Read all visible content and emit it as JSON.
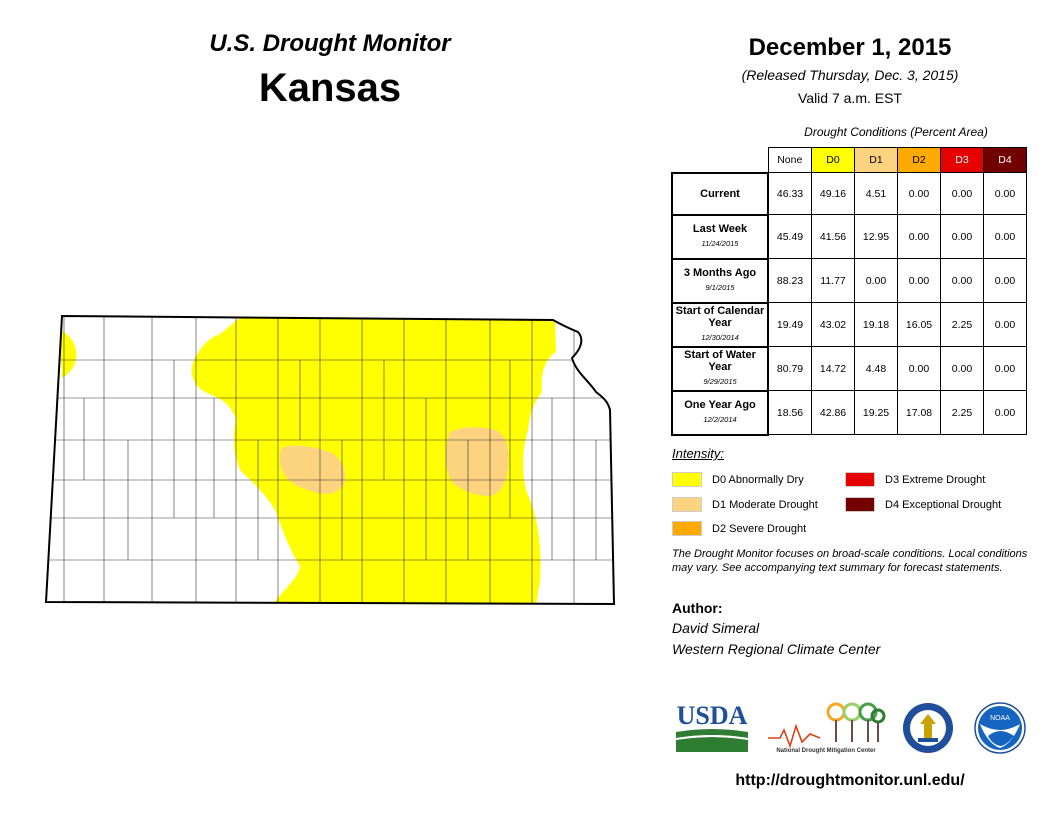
{
  "header": {
    "title": "U.S. Drought Monitor",
    "state": "Kansas",
    "date": "December 1, 2015",
    "released": "(Released Thursday, Dec. 3, 2015)",
    "valid": "Valid 7 a.m. EST"
  },
  "table": {
    "caption": "Drought Conditions (Percent Area)",
    "columns": [
      {
        "label": "None",
        "color": "#ffffff",
        "text_color": "#000000"
      },
      {
        "label": "D0",
        "color": "#ffff00",
        "text_color": "#000000"
      },
      {
        "label": "D1",
        "color": "#fcd37f",
        "text_color": "#000000"
      },
      {
        "label": "D2",
        "color": "#ffaa00",
        "text_color": "#000000"
      },
      {
        "label": "D3",
        "color": "#e60000",
        "text_color": "#ffffff"
      },
      {
        "label": "D4",
        "color": "#730000",
        "text_color": "#ffffff"
      }
    ],
    "rows": [
      {
        "label": "Current",
        "sub": "",
        "values": [
          "46.33",
          "49.16",
          "4.51",
          "0.00",
          "0.00",
          "0.00"
        ]
      },
      {
        "label": "Last Week",
        "sub": "11/24/2015",
        "values": [
          "45.49",
          "41.56",
          "12.95",
          "0.00",
          "0.00",
          "0.00"
        ]
      },
      {
        "label": "3 Months Ago",
        "sub": "9/1/2015",
        "values": [
          "88.23",
          "11.77",
          "0.00",
          "0.00",
          "0.00",
          "0.00"
        ]
      },
      {
        "label": "Start of Calendar Year",
        "sub": "12/30/2014",
        "values": [
          "19.49",
          "43.02",
          "19.18",
          "16.05",
          "2.25",
          "0.00"
        ]
      },
      {
        "label": "Start of Water Year",
        "sub": "9/29/2015",
        "values": [
          "80.79",
          "14.72",
          "4.48",
          "0.00",
          "0.00",
          "0.00"
        ]
      },
      {
        "label": "One Year Ago",
        "sub": "12/2/2014",
        "values": [
          "18.56",
          "42.86",
          "19.25",
          "17.08",
          "2.25",
          "0.00"
        ]
      }
    ]
  },
  "legend": {
    "title": "Intensity:",
    "items": [
      {
        "label": "D0 Abnormally Dry",
        "color": "#ffff00"
      },
      {
        "label": "D1 Moderate Drought",
        "color": "#fcd37f"
      },
      {
        "label": "D2 Severe Drought",
        "color": "#ffaa00"
      },
      {
        "label": "D3 Extreme Drought",
        "color": "#e60000"
      },
      {
        "label": "D4 Exceptional Drought",
        "color": "#730000"
      }
    ]
  },
  "note": "The Drought Monitor focuses on broad-scale conditions. Local conditions may vary. See accompanying text summary for forecast statements.",
  "author": {
    "label": "Author:",
    "name": "David Simeral",
    "org": "Western Regional Climate Center"
  },
  "logos": {
    "usda": "USDA",
    "ndmc": "National Drought Mitigation Center",
    "noaa": "NOAA"
  },
  "url": "http://droughtmonitor.unl.edu/"
}
